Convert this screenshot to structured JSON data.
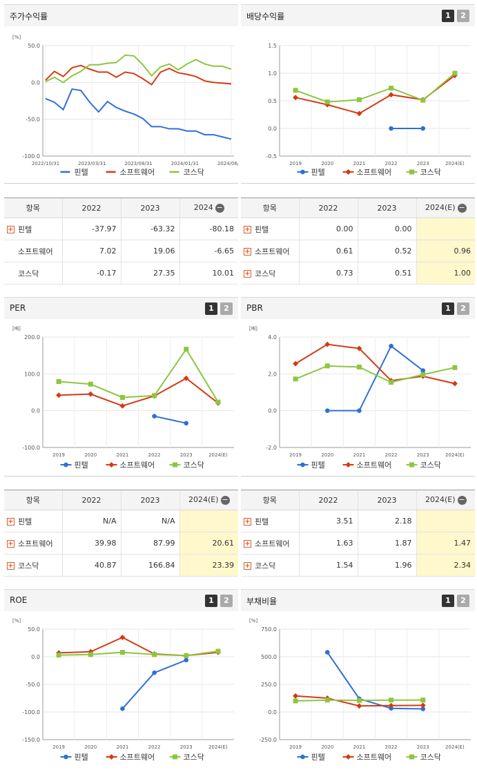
{
  "colors": {
    "pintel": "#2e6fd8",
    "software": "#d63a12",
    "kosdaq": "#8cc63f"
  },
  "legend": [
    "핀텔",
    "소프트웨어",
    "코스닥"
  ],
  "stock_return": {
    "title": "주가수익률",
    "chart_data": {
      "type": "line",
      "unit": "[%]",
      "ylim": [
        -100,
        50
      ],
      "yticks": [
        "50.0",
        "0.0",
        "-50.0",
        "-100.0"
      ],
      "xticks": [
        "2022/10/31",
        "2023/03/31",
        "2023/08/31",
        "2024/01/31",
        "2024/06/28"
      ],
      "series": [
        {
          "name": "핀텔",
          "values": [
            -22,
            -27,
            -37,
            -9,
            -11,
            -27,
            -40,
            -26,
            -34,
            -39,
            -43,
            -49,
            -60,
            -60,
            -63,
            -63,
            -66,
            -66,
            -71,
            -71,
            -74,
            -77
          ]
        },
        {
          "name": "소프트웨어",
          "values": [
            3,
            15,
            8,
            20,
            23,
            18,
            14,
            14,
            7,
            14,
            12,
            5,
            -3,
            14,
            19,
            13,
            11,
            8,
            2,
            0,
            -1,
            -2
          ]
        },
        {
          "name": "코스닥",
          "values": [
            1,
            7,
            0,
            9,
            15,
            24,
            24,
            26,
            27,
            37,
            36,
            24,
            9,
            21,
            25,
            17,
            25,
            31,
            25,
            22,
            22,
            18
          ]
        }
      ]
    }
  },
  "stock_table": {
    "headers": [
      "항목",
      "2022",
      "2023",
      "2024"
    ],
    "rows": [
      {
        "name": "핀텔",
        "values": [
          "-37.97",
          "-63.32",
          "-80.18"
        ]
      },
      {
        "name": "소프트웨어",
        "values": [
          "7.02",
          "19.06",
          "-6.65"
        ]
      },
      {
        "name": "코스닥",
        "values": [
          "-0.17",
          "27.35",
          "10.01"
        ]
      }
    ]
  },
  "dividend": {
    "title": "배당수익률",
    "pages": [
      "1",
      "2"
    ],
    "chart_data": {
      "type": "line",
      "ylim": [
        -0.5,
        1.5
      ],
      "yticks": [
        "1.5",
        "1.0",
        "0.5",
        "0.0",
        "-0.5"
      ],
      "categories": [
        "2019",
        "2020",
        "2021",
        "2022",
        "2023",
        "2024(E)"
      ],
      "series": [
        {
          "name": "핀텔",
          "values": [
            null,
            null,
            null,
            0.0,
            0.0,
            null
          ]
        },
        {
          "name": "소프트웨어",
          "values": [
            0.56,
            0.43,
            0.27,
            0.61,
            0.52,
            0.96
          ]
        },
        {
          "name": "코스닥",
          "values": [
            0.69,
            0.48,
            0.52,
            0.73,
            0.51,
            1.0
          ]
        }
      ]
    }
  },
  "dividend_table": {
    "headers": [
      "항목",
      "2022",
      "2023",
      "2024(E)"
    ],
    "rows": [
      {
        "name": "핀텔",
        "values": [
          "0.00",
          "0.00",
          ""
        ]
      },
      {
        "name": "소프트웨어",
        "values": [
          "0.61",
          "0.52",
          "0.96"
        ]
      },
      {
        "name": "코스닥",
        "values": [
          "0.73",
          "0.51",
          "1.00"
        ]
      }
    ]
  },
  "per": {
    "title": "PER",
    "pages": [
      "1",
      "2"
    ],
    "chart_data": {
      "type": "line",
      "unit": "[배]",
      "ylim": [
        -100,
        200
      ],
      "yticks": [
        "200.0",
        "100.0",
        "0.0",
        "-100.0"
      ],
      "categories": [
        "2019",
        "2020",
        "2021",
        "2022",
        "2023",
        "2024(E)"
      ],
      "series": [
        {
          "name": "핀텔",
          "values": [
            null,
            null,
            null,
            -15,
            -34,
            null
          ]
        },
        {
          "name": "소프트웨어",
          "values": [
            42,
            45,
            13,
            39.98,
            87.99,
            20.61
          ]
        },
        {
          "name": "코스닥",
          "values": [
            79,
            72,
            36,
            40.87,
            166.84,
            23.39
          ]
        }
      ]
    }
  },
  "per_table": {
    "headers": [
      "항목",
      "2022",
      "2023",
      "2024(E)"
    ],
    "rows": [
      {
        "name": "핀텔",
        "values": [
          "N/A",
          "N/A",
          ""
        ]
      },
      {
        "name": "소프트웨어",
        "values": [
          "39.98",
          "87.99",
          "20.61"
        ]
      },
      {
        "name": "코스닥",
        "values": [
          "40.87",
          "166.84",
          "23.39"
        ]
      }
    ]
  },
  "pbr": {
    "title": "PBR",
    "pages": [
      "1",
      "2"
    ],
    "chart_data": {
      "type": "line",
      "unit": "[배]",
      "ylim": [
        -2,
        4
      ],
      "yticks": [
        "4.0",
        "2.0",
        "0.0",
        "-2.0"
      ],
      "categories": [
        "2019",
        "2020",
        "2021",
        "2022",
        "2023",
        "2024(E)"
      ],
      "series": [
        {
          "name": "핀텔",
          "values": [
            null,
            0.0,
            0.0,
            3.51,
            2.18,
            null
          ]
        },
        {
          "name": "소프트웨어",
          "values": [
            2.55,
            3.6,
            3.38,
            1.63,
            1.87,
            1.47
          ]
        },
        {
          "name": "코스닥",
          "values": [
            1.72,
            2.43,
            2.37,
            1.54,
            1.96,
            2.34
          ]
        }
      ]
    }
  },
  "pbr_table": {
    "headers": [
      "항목",
      "2022",
      "2023",
      "2024(E)"
    ],
    "rows": [
      {
        "name": "핀텔",
        "values": [
          "3.51",
          "2.18",
          ""
        ]
      },
      {
        "name": "소프트웨어",
        "values": [
          "1.63",
          "1.87",
          "1.47"
        ]
      },
      {
        "name": "코스닥",
        "values": [
          "1.54",
          "1.96",
          "2.34"
        ]
      }
    ]
  },
  "roe": {
    "title": "ROE",
    "pages": [
      "1",
      "2"
    ],
    "chart_data": {
      "type": "line",
      "unit": "[%]",
      "ylim": [
        -150,
        50
      ],
      "yticks": [
        "50.0",
        "0.0",
        "-50.0",
        "-100.0",
        "-150.0"
      ],
      "categories": [
        "2019",
        "2020",
        "2021",
        "2022",
        "2023",
        "2024(E)"
      ],
      "series": [
        {
          "name": "핀텔",
          "values": [
            null,
            null,
            -94,
            -29,
            -6,
            null
          ]
        },
        {
          "name": "소프트웨어",
          "values": [
            7,
            9,
            35,
            5,
            2,
            8
          ]
        },
        {
          "name": "코스닥",
          "values": [
            3,
            4,
            8,
            4,
            2,
            10
          ]
        }
      ]
    }
  },
  "debt": {
    "title": "부채비율",
    "pages": [
      "1",
      "2"
    ],
    "chart_data": {
      "type": "line",
      "unit": "[%]",
      "ylim": [
        -250,
        750
      ],
      "yticks": [
        "750.0",
        "500.0",
        "250.0",
        "0.0",
        "-250.0"
      ],
      "categories": [
        "2019",
        "2020",
        "2021",
        "2022",
        "2023",
        "2024(E)"
      ],
      "series": [
        {
          "name": "핀텔",
          "values": [
            null,
            540,
            120,
            33,
            28,
            null
          ]
        },
        {
          "name": "소프트웨어",
          "values": [
            145,
            125,
            55,
            58,
            60,
            null
          ]
        },
        {
          "name": "코스닥",
          "values": [
            100,
            108,
            105,
            108,
            108,
            null
          ]
        }
      ]
    }
  }
}
